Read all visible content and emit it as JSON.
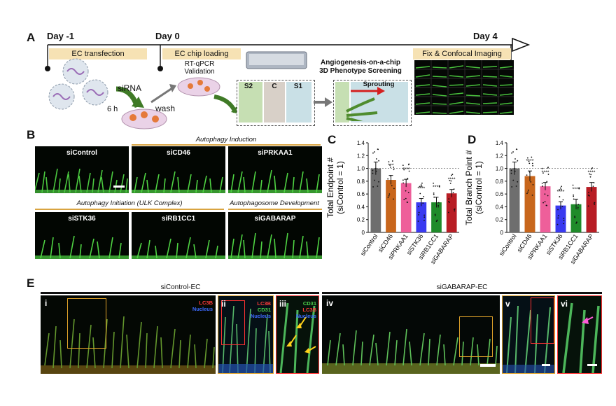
{
  "panel_a": {
    "label": "A",
    "days": [
      "Day -1",
      "Day 0",
      "Day 4"
    ],
    "stages": [
      "EC transfection",
      "EC chip loading",
      "Fix & Confocal Imaging"
    ],
    "notes": {
      "sirna": "siRNA",
      "time": "6 h",
      "wash": "wash",
      "rt_qpcr": "RT-qPCR",
      "validation": "Validation",
      "chip_title_1": "Angiogenesis-on-a-chip",
      "chip_title_2": "3D Phenotype Screening",
      "s2": "S2",
      "c": "C",
      "s1": "S1",
      "sprouting": "Sprouting"
    }
  },
  "panel_b": {
    "label": "B",
    "categories": [
      "Autophagy Induction",
      "Autophagy Initiation (ULK Complex)",
      "Autophagosome Development"
    ],
    "images": [
      "siControl",
      "siCD46",
      "siPRKAA1",
      "siSTK36",
      "siRB1CC1",
      "siGABARAP"
    ]
  },
  "panel_c": {
    "label": "C",
    "chart_data": {
      "type": "bar",
      "ylabel": "Total Endpoint #\n(siControl = 1)",
      "ylim": [
        0,
        1.4
      ],
      "yticks": [
        "0",
        "0.2",
        "0.4",
        "0.6",
        "0.8",
        "1.0",
        "1.2",
        "1.4"
      ],
      "categories": [
        "siControl",
        "siCD46",
        "siPRKAA1",
        "siSTK36",
        "siRB1CC1",
        "siGABARAP"
      ],
      "values": [
        1.0,
        0.82,
        0.77,
        0.47,
        0.47,
        0.61
      ],
      "errors": [
        0.1,
        0.07,
        0.06,
        0.06,
        0.08,
        0.06
      ],
      "significance": [
        "",
        "***",
        "****",
        "****",
        "****",
        "****"
      ],
      "colors": [
        "#6e6e6e",
        "#c8661c",
        "#ee5f9a",
        "#3a3af0",
        "#1f8b2a",
        "#b81d24"
      ]
    }
  },
  "panel_d": {
    "label": "D",
    "chart_data": {
      "type": "bar",
      "ylabel": "Total Branch Point #\n(siControl = 1)",
      "ylim": [
        0,
        1.4
      ],
      "yticks": [
        "0",
        "0.2",
        "0.4",
        "0.6",
        "0.8",
        "1.0",
        "1.2",
        "1.4"
      ],
      "categories": [
        "siControl",
        "siCD46",
        "siPRKAA1",
        "siSTK36",
        "siRB1CC1",
        "siGABARAP"
      ],
      "values": [
        1.0,
        0.88,
        0.72,
        0.42,
        0.44,
        0.71
      ],
      "errors": [
        0.1,
        0.08,
        0.06,
        0.06,
        0.08,
        0.07
      ],
      "significance": [
        "",
        "****",
        "****",
        "****",
        "****",
        "****"
      ],
      "colors": [
        "#6e6e6e",
        "#c8661c",
        "#ee5f9a",
        "#3a3af0",
        "#1f8b2a",
        "#b81d24"
      ]
    }
  },
  "panel_e": {
    "label": "E",
    "groups": [
      "siControl-EC",
      "siGABARAP-EC"
    ],
    "subpanels": [
      "i",
      "ii",
      "iii",
      "iv",
      "v",
      "vi"
    ],
    "channels": {
      "lc3b": "LC3B",
      "nucleus": "Nucleus",
      "cd31": "CD31"
    }
  }
}
